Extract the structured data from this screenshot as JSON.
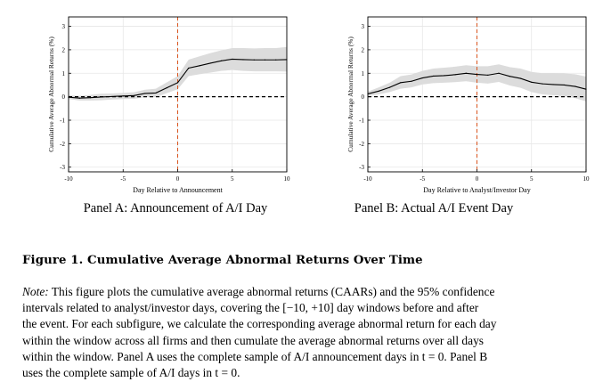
{
  "chart_data": [
    {
      "type": "line",
      "panel": "A",
      "xlabel": "Day Relative to Announcement",
      "ylabel": "Cumulative Average Abnormal Returns (%)",
      "xlim": [
        -10,
        10
      ],
      "ylim": [
        -3.2,
        3.4
      ],
      "xticks": [
        -10,
        -5,
        0,
        5,
        10
      ],
      "yticks": [
        -3,
        -2,
        -1,
        0,
        1,
        2,
        3
      ],
      "xtick_labels": [
        "-10",
        "-5",
        "0",
        "5",
        "10"
      ],
      "ytick_labels": [
        "-3",
        "-2",
        "-1",
        "0",
        "1",
        "2",
        "3"
      ],
      "grid": true,
      "vline_x": 0,
      "hline_y": 0,
      "series": [
        {
          "name": "CAAR",
          "x": [
            -10,
            -9,
            -8,
            -7,
            -6,
            -5,
            -4,
            -3,
            -2,
            -1,
            0,
            1,
            2,
            3,
            4,
            5,
            6,
            7,
            8,
            9,
            10
          ],
          "values": [
            -0.02,
            -0.06,
            -0.04,
            -0.01,
            0.01,
            0.03,
            0.05,
            0.14,
            0.16,
            0.38,
            0.6,
            1.22,
            1.32,
            1.43,
            1.53,
            1.6,
            1.58,
            1.57,
            1.57,
            1.57,
            1.58
          ],
          "ci_lower": [
            -0.1,
            -0.16,
            -0.16,
            -0.15,
            -0.12,
            -0.1,
            -0.09,
            -0.02,
            -0.02,
            0.15,
            0.32,
            0.88,
            0.96,
            1.03,
            1.1,
            1.14,
            1.1,
            1.08,
            1.08,
            1.08,
            1.07
          ],
          "ci_upper": [
            0.06,
            0.04,
            0.08,
            0.13,
            0.14,
            0.16,
            0.19,
            0.3,
            0.34,
            0.61,
            0.88,
            1.58,
            1.72,
            1.86,
            1.98,
            2.07,
            2.07,
            2.06,
            2.07,
            2.07,
            2.12
          ]
        }
      ],
      "caption": "Panel A: Announcement of A/I Day"
    },
    {
      "type": "line",
      "panel": "B",
      "xlabel": "Day Relative to Analyst/Investor Day",
      "ylabel": "Cumulative Average Abnormal Returns (%)",
      "xlim": [
        -10,
        10
      ],
      "ylim": [
        -3.2,
        3.4
      ],
      "xticks": [
        -10,
        -5,
        0,
        5,
        10
      ],
      "yticks": [
        -3,
        -2,
        -1,
        0,
        1,
        2,
        3
      ],
      "xtick_labels": [
        "-10",
        "-5",
        "0",
        "5",
        "10"
      ],
      "ytick_labels": [
        "-3",
        "-2",
        "-1",
        "0",
        "1",
        "2",
        "3"
      ],
      "grid": true,
      "vline_x": 0,
      "hline_y": 0,
      "series": [
        {
          "name": "CAAR",
          "x": [
            -10,
            -9,
            -8,
            -7,
            -6,
            -5,
            -4,
            -3,
            -2,
            -1,
            0,
            1,
            2,
            3,
            4,
            5,
            6,
            7,
            8,
            9,
            10
          ],
          "values": [
            0.12,
            0.24,
            0.4,
            0.6,
            0.66,
            0.8,
            0.88,
            0.9,
            0.94,
            1.0,
            0.95,
            0.92,
            1.0,
            0.87,
            0.78,
            0.62,
            0.55,
            0.52,
            0.5,
            0.44,
            0.32
          ],
          "ci_lower": [
            0.03,
            0.1,
            0.2,
            0.34,
            0.4,
            0.52,
            0.58,
            0.6,
            0.62,
            0.66,
            0.6,
            0.56,
            0.63,
            0.48,
            0.38,
            0.2,
            0.1,
            0.06,
            0.02,
            -0.06,
            -0.2
          ],
          "ci_upper": [
            0.22,
            0.4,
            0.6,
            0.88,
            0.95,
            1.1,
            1.2,
            1.24,
            1.28,
            1.34,
            1.3,
            1.3,
            1.38,
            1.26,
            1.2,
            1.06,
            1.0,
            1.0,
            0.99,
            0.96,
            0.86
          ]
        }
      ],
      "caption": "Panel B: Actual A/I Event Day"
    }
  ],
  "figure": {
    "title": "Figure 1. Cumulative Average Abnormal Returns Over Time",
    "note_label": "Note:",
    "note_lines": [
      " This figure plots the cumulative average abnormal returns (CAARs) and the 95% confidence",
      "intervals related to analyst/investor days, covering the [−10, +10] day windows before and after",
      "the event. For each subfigure, we calculate the corresponding average abnormal return for each day",
      "within the window across all firms and then cumulate the average abnormal returns over all days",
      "within the window. Panel A uses the complete sample of A/I announcement days in t = 0. Panel B",
      "uses the complete sample of A/I days in t = 0."
    ]
  },
  "colors": {
    "line": "#000000",
    "ci_band": "#dcdcdc",
    "vline": "#d9541e",
    "grid": "#e6e6e6"
  }
}
